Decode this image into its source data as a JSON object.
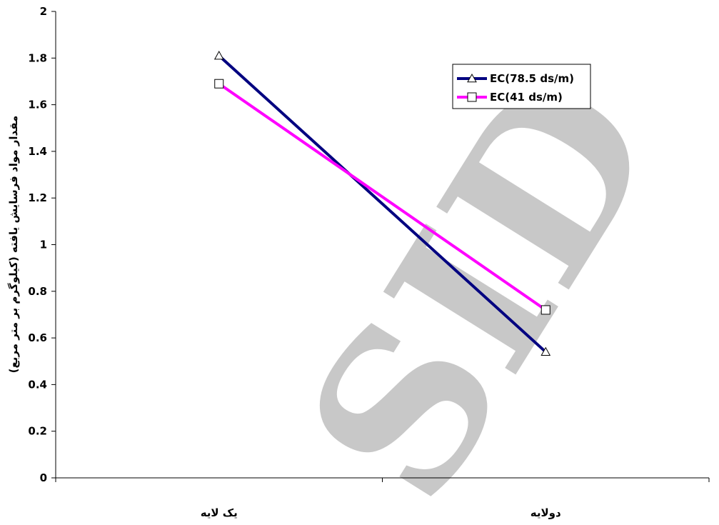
{
  "chart_data": {
    "type": "line",
    "categories": [
      "یک لایه",
      "دولایه"
    ],
    "series": [
      {
        "name": "EC(78.5 ds/m)",
        "values": [
          1.81,
          0.54
        ],
        "color": "#000080",
        "marker": "triangle"
      },
      {
        "name": "EC(41 ds/m)",
        "values": [
          1.69,
          0.72
        ],
        "color": "#ff00ff",
        "marker": "square"
      }
    ],
    "title": "",
    "xlabel": "",
    "ylabel": "مقدار مواد فرسایش یافته (کیلوگرم بر متر مربع)",
    "ylim": [
      0,
      2
    ],
    "yticks": [
      0,
      0.2,
      0.4,
      0.6,
      0.8,
      1,
      1.2,
      1.4,
      1.6,
      1.8,
      2
    ],
    "ytick_labels": [
      "0",
      "0.2",
      "0.4",
      "0.6",
      "0.8",
      "1",
      "1.2",
      "1.4",
      "1.6",
      "1.8",
      "2"
    ],
    "grid": false,
    "legend_position": "top-right"
  },
  "watermark": {
    "text": "SID",
    "color": "#c8c8c8"
  }
}
